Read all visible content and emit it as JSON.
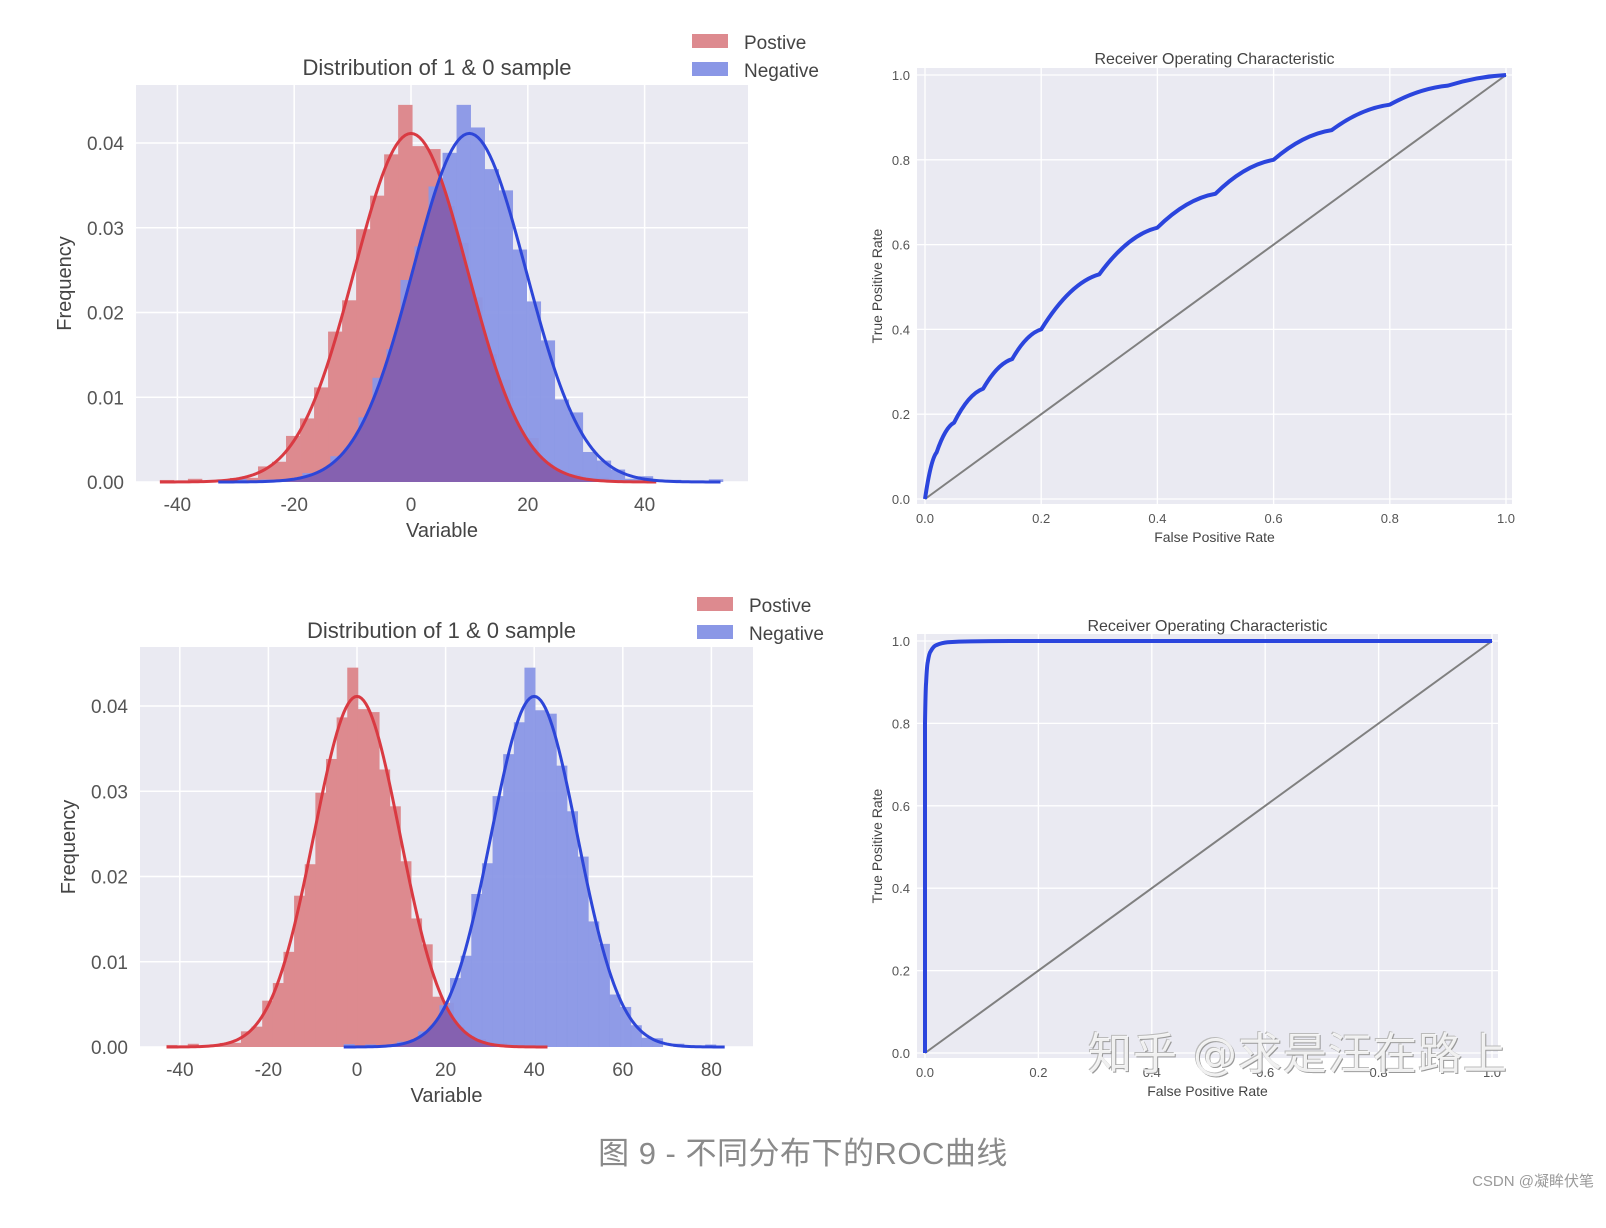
{
  "figure": {
    "caption": "图 9 - 不同分布下的ROC曲线",
    "credit": "CSDN @凝眸伏笔",
    "watermark": "知乎 @求是汪在路上"
  },
  "colors": {
    "axes_bg": "#eaeaf2",
    "grid": "#ffffff",
    "positive_fill": "#dd8a8f",
    "negative_fill": "#8a97e6",
    "overlap_fill": "#8561b0",
    "positive_line": "#d93a42",
    "negative_line": "#2d46d8",
    "roc_line": "#2b45dd",
    "diagonal": "#808080"
  },
  "panels": {
    "dist_top": {
      "title": "Distribution of 1 & 0 sample",
      "xlabel": "Variable",
      "ylabel": "Frequency",
      "legend": [
        "Postive",
        "Negative"
      ],
      "xticks": [
        "-40",
        "-20",
        "0",
        "20",
        "40"
      ],
      "yticks": [
        "0.00",
        "0.01",
        "0.02",
        "0.03",
        "0.04"
      ]
    },
    "roc_top": {
      "title": "Receiver Operating Characteristic",
      "xlabel": "False Positive Rate",
      "ylabel": "True Positive Rate",
      "xticks": [
        "0.0",
        "0.2",
        "0.4",
        "0.6",
        "0.8",
        "1.0"
      ],
      "yticks": [
        "0.0",
        "0.2",
        "0.4",
        "0.6",
        "0.8",
        "1.0"
      ]
    },
    "dist_bottom": {
      "title": "Distribution of 1 & 0 sample",
      "xlabel": "Variable",
      "ylabel": "Frequency",
      "legend": [
        "Postive",
        "Negative"
      ],
      "xticks": [
        "-40",
        "-20",
        "0",
        "20",
        "40",
        "60",
        "80"
      ],
      "yticks": [
        "0.00",
        "0.01",
        "0.02",
        "0.03",
        "0.04"
      ]
    },
    "roc_bottom": {
      "title": "Receiver Operating Characteristic",
      "xlabel": "False Positive Rate",
      "ylabel": "True Positive Rate",
      "xticks": [
        "0.0",
        "0.2",
        "0.4",
        "0.6",
        "0.8",
        "1.0"
      ],
      "yticks": [
        "0.0",
        "0.2",
        "0.4",
        "0.6",
        "0.8",
        "1.0"
      ]
    }
  },
  "chart_data": [
    {
      "type": "bar",
      "subtype": "histogram+kde",
      "title": "Distribution of 1 & 0 sample",
      "xlabel": "Variable",
      "ylabel": "Frequency",
      "xlim": [
        -45,
        55
      ],
      "ylim": [
        0,
        0.046
      ],
      "grid": true,
      "legend_position": "upper right (outside)",
      "series": [
        {
          "name": "Postive",
          "distribution": "normal",
          "mean": 0,
          "std": 9.7,
          "peak_density": 0.041,
          "x_range": [
            -43,
            42
          ]
        },
        {
          "name": "Negative",
          "distribution": "normal",
          "mean": 10,
          "std": 9.7,
          "peak_density": 0.041,
          "x_range": [
            -33,
            53
          ]
        }
      ]
    },
    {
      "type": "line",
      "title": "Receiver Operating Characteristic",
      "xlabel": "False Positive Rate",
      "ylabel": "True Positive Rate",
      "xlim": [
        0,
        1
      ],
      "ylim": [
        0,
        1
      ],
      "grid": true,
      "series": [
        {
          "name": "ROC",
          "x": [
            0,
            0.02,
            0.05,
            0.1,
            0.15,
            0.2,
            0.3,
            0.4,
            0.5,
            0.6,
            0.7,
            0.8,
            0.9,
            1.0
          ],
          "y": [
            0,
            0.11,
            0.18,
            0.26,
            0.33,
            0.4,
            0.53,
            0.64,
            0.72,
            0.8,
            0.87,
            0.93,
            0.975,
            1.0
          ]
        },
        {
          "name": "Chance",
          "x": [
            0,
            1
          ],
          "y": [
            0,
            1
          ]
        }
      ]
    },
    {
      "type": "bar",
      "subtype": "histogram+kde",
      "title": "Distribution of 1 & 0 sample",
      "xlabel": "Variable",
      "ylabel": "Frequency",
      "xlim": [
        -50,
        90
      ],
      "ylim": [
        0,
        0.046
      ],
      "grid": true,
      "legend_position": "upper right (outside)",
      "series": [
        {
          "name": "Postive",
          "distribution": "normal",
          "mean": 0,
          "std": 9.7,
          "peak_density": 0.041,
          "x_range": [
            -43,
            43
          ]
        },
        {
          "name": "Negative",
          "distribution": "normal",
          "mean": 40,
          "std": 9.7,
          "peak_density": 0.041,
          "x_range": [
            -3,
            83
          ]
        }
      ]
    },
    {
      "type": "line",
      "title": "Receiver Operating Characteristic",
      "xlabel": "False Positive Rate",
      "ylabel": "True Positive Rate",
      "xlim": [
        0,
        1
      ],
      "ylim": [
        0,
        1
      ],
      "grid": true,
      "series": [
        {
          "name": "ROC",
          "x": [
            0,
            0.0,
            0.002,
            0.005,
            0.01,
            0.02,
            0.04,
            0.08,
            0.15,
            1.0
          ],
          "y": [
            0,
            0.8,
            0.9,
            0.95,
            0.975,
            0.99,
            0.997,
            0.999,
            1.0,
            1.0
          ]
        },
        {
          "name": "Chance",
          "x": [
            0,
            1
          ],
          "y": [
            0,
            1
          ]
        }
      ]
    }
  ]
}
